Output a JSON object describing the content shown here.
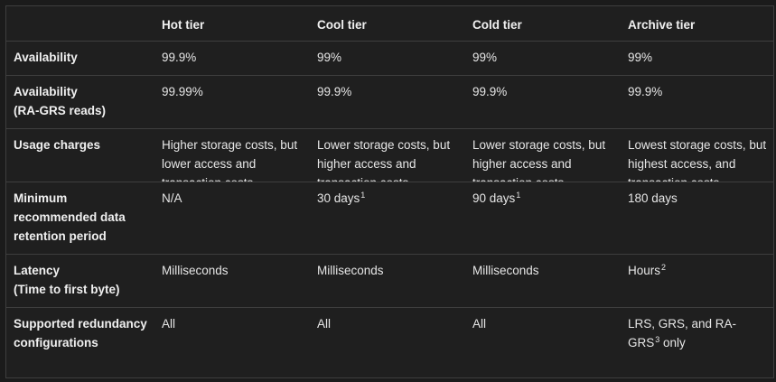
{
  "table": {
    "columns": [
      "",
      "Hot tier",
      "Cool tier",
      "Cold tier",
      "Archive tier"
    ],
    "rows": [
      {
        "label": [
          "Availability"
        ],
        "cells": [
          {
            "text": "99.9%",
            "sup": ""
          },
          {
            "text": "99%",
            "sup": ""
          },
          {
            "text": "99%",
            "sup": ""
          },
          {
            "text": "99%",
            "sup": ""
          }
        ]
      },
      {
        "label": [
          "Availability",
          "(RA-GRS reads)"
        ],
        "cells": [
          {
            "text": "99.99%",
            "sup": ""
          },
          {
            "text": "99.9%",
            "sup": ""
          },
          {
            "text": "99.9%",
            "sup": ""
          },
          {
            "text": "99.9%",
            "sup": ""
          }
        ]
      },
      {
        "label": [
          "Usage charges"
        ],
        "cells": [
          {
            "text": "Higher storage costs, but lower access and transaction costs",
            "sup": ""
          },
          {
            "text": "Lower storage costs, but higher access and transaction costs",
            "sup": ""
          },
          {
            "text": "Lower storage costs, but higher access and transaction costs",
            "sup": ""
          },
          {
            "text": "Lowest storage costs, but highest access, and transaction costs",
            "sup": ""
          }
        ]
      },
      {
        "label": [
          "Minimum",
          "recommended data",
          "retention period"
        ],
        "cells": [
          {
            "text": "N/A",
            "sup": ""
          },
          {
            "text": "30 days",
            "sup": "1"
          },
          {
            "text": "90 days",
            "sup": "1"
          },
          {
            "text": "180 days",
            "sup": ""
          }
        ]
      },
      {
        "label": [
          "Latency",
          "(Time to first byte)"
        ],
        "cells": [
          {
            "text": "Milliseconds",
            "sup": ""
          },
          {
            "text": "Milliseconds",
            "sup": ""
          },
          {
            "text": "Milliseconds",
            "sup": ""
          },
          {
            "text": "Hours",
            "sup": "2"
          }
        ]
      },
      {
        "label": [
          "Supported redundancy",
          "configurations"
        ],
        "cells": [
          {
            "text": "All",
            "sup": ""
          },
          {
            "text": "All",
            "sup": ""
          },
          {
            "text": "All",
            "sup": ""
          },
          {
            "text": "LRS, GRS, and RA-GRS",
            "sup": "3",
            "after": " only"
          }
        ]
      }
    ]
  }
}
